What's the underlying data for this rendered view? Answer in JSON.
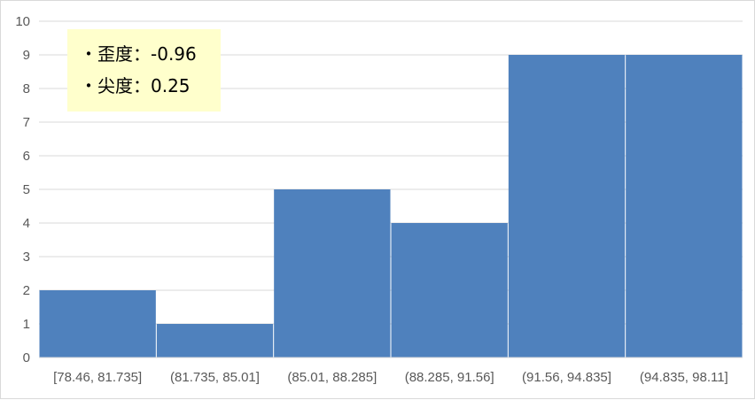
{
  "chart_data": {
    "type": "bar",
    "categories": [
      "[78.46, 81.735]",
      "(81.735, 85.01]",
      "(85.01, 88.285]",
      "(88.285, 91.56]",
      "(91.56, 94.835]",
      "(94.835, 98.11]"
    ],
    "values": [
      2,
      1,
      5,
      4,
      9,
      9
    ],
    "ylim": [
      0,
      10
    ],
    "yticks": [
      0,
      1,
      2,
      3,
      4,
      5,
      6,
      7,
      8,
      9,
      10
    ],
    "grid": true,
    "bar_color": "#4f81bd",
    "gridline_color": "#d9d9d9",
    "annotations": [
      "・歪度：-0.96",
      "・尖度：0.25"
    ],
    "annotation_background": "#ffffcc"
  }
}
